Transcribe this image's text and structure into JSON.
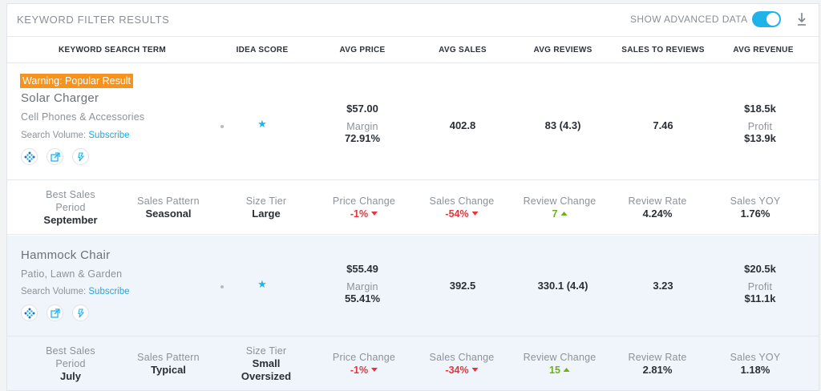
{
  "topbar": {
    "title": "KEYWORD FILTER RESULTS",
    "advanced_label": "SHOW ADVANCED DATA",
    "advanced_on": true,
    "download_icon": "download-icon"
  },
  "columns": [
    "KEYWORD SEARCH TERM",
    "IDEA SCORE",
    "AVG PRICE",
    "AVG SALES",
    "AVG REVIEWS",
    "SALES TO REVIEWS",
    "AVG REVENUE"
  ],
  "accent_color": "#1fb3ea",
  "warning_color": "#f7931d",
  "rows": [
    {
      "warning": "Warning: Popular Result",
      "keyword": "Solar Charger",
      "category": "Cell Phones & Accessories",
      "search_volume_label": "Search Volume:",
      "search_volume_link": "Subscribe",
      "avg_price": "$57.00",
      "margin_label": "Margin",
      "margin": "72.91%",
      "avg_sales": "402.8",
      "avg_reviews": "83 (4.3)",
      "sales_to_reviews": "7.46",
      "avg_revenue": "$18.5k",
      "profit_label": "Profit",
      "profit": "$13.9k",
      "details": {
        "best_sales_period_label_1": "Best Sales",
        "best_sales_period_label_2": "Period",
        "best_sales_period": "September",
        "sales_pattern_label": "Sales Pattern",
        "sales_pattern": "Seasonal",
        "size_tier_label": "Size Tier",
        "size_tier_1": "Large",
        "size_tier_2": "",
        "price_change_label": "Price Change",
        "price_change": "-1%",
        "sales_change_label": "Sales Change",
        "sales_change": "-54%",
        "review_change_label": "Review Change",
        "review_change": "7",
        "review_rate_label": "Review Rate",
        "review_rate": "4.24%",
        "sales_yoy_label": "Sales YOY",
        "sales_yoy": "1.76%"
      }
    },
    {
      "warning": "",
      "keyword": "Hammock Chair",
      "category": "Patio, Lawn & Garden",
      "search_volume_label": "Search Volume:",
      "search_volume_link": "Subscribe",
      "avg_price": "$55.49",
      "margin_label": "Margin",
      "margin": "55.41%",
      "avg_sales": "392.5",
      "avg_reviews": "330.1 (4.4)",
      "sales_to_reviews": "3.23",
      "avg_revenue": "$20.5k",
      "profit_label": "Profit",
      "profit": "$11.1k",
      "details": {
        "best_sales_period_label_1": "Best Sales",
        "best_sales_period_label_2": "Period",
        "best_sales_period": "July",
        "sales_pattern_label": "Sales Pattern",
        "sales_pattern": "Typical",
        "size_tier_label": "Size Tier",
        "size_tier_1": "Small",
        "size_tier_2": "Oversized",
        "price_change_label": "Price Change",
        "price_change": "-1%",
        "sales_change_label": "Sales Change",
        "sales_change": "-34%",
        "review_change_label": "Review Change",
        "review_change": "15",
        "review_rate_label": "Review Rate",
        "review_rate": "2.81%",
        "sales_yoy_label": "Sales YOY",
        "sales_yoy": "1.18%"
      }
    }
  ]
}
